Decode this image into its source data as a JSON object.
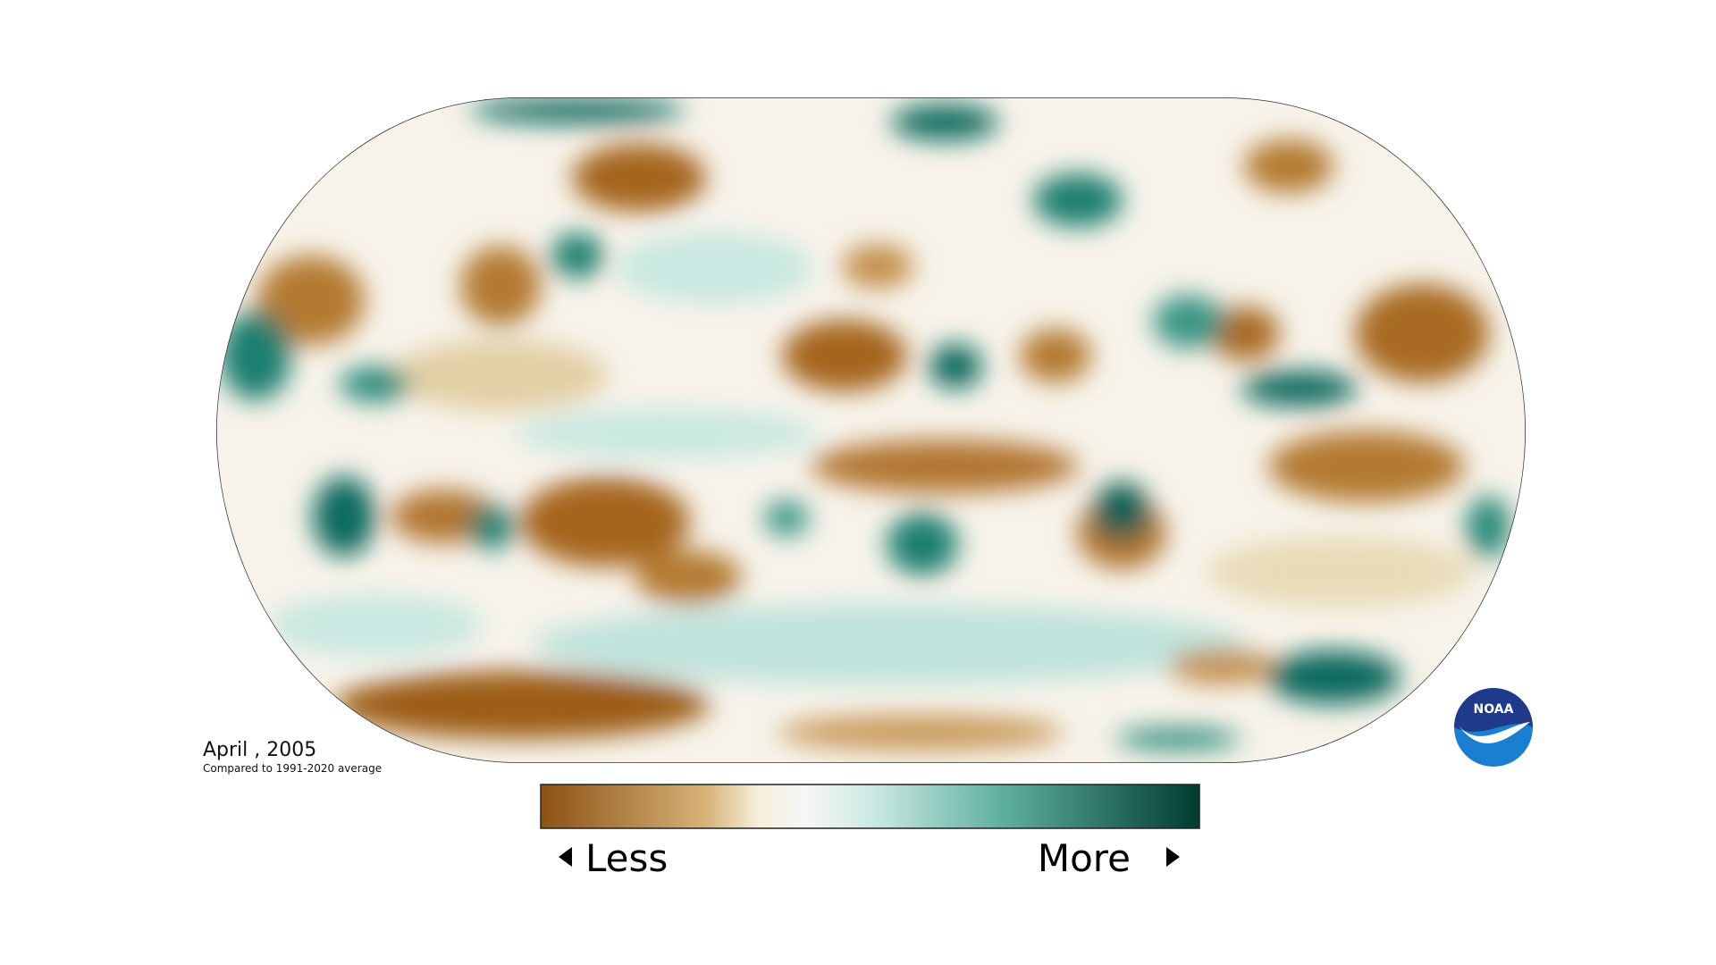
{
  "date_label": "April , 2005",
  "baseline_note": "Compared to 1991-2020 average",
  "legend": {
    "less": "Less",
    "more": "More"
  },
  "logo": "NOAA"
}
